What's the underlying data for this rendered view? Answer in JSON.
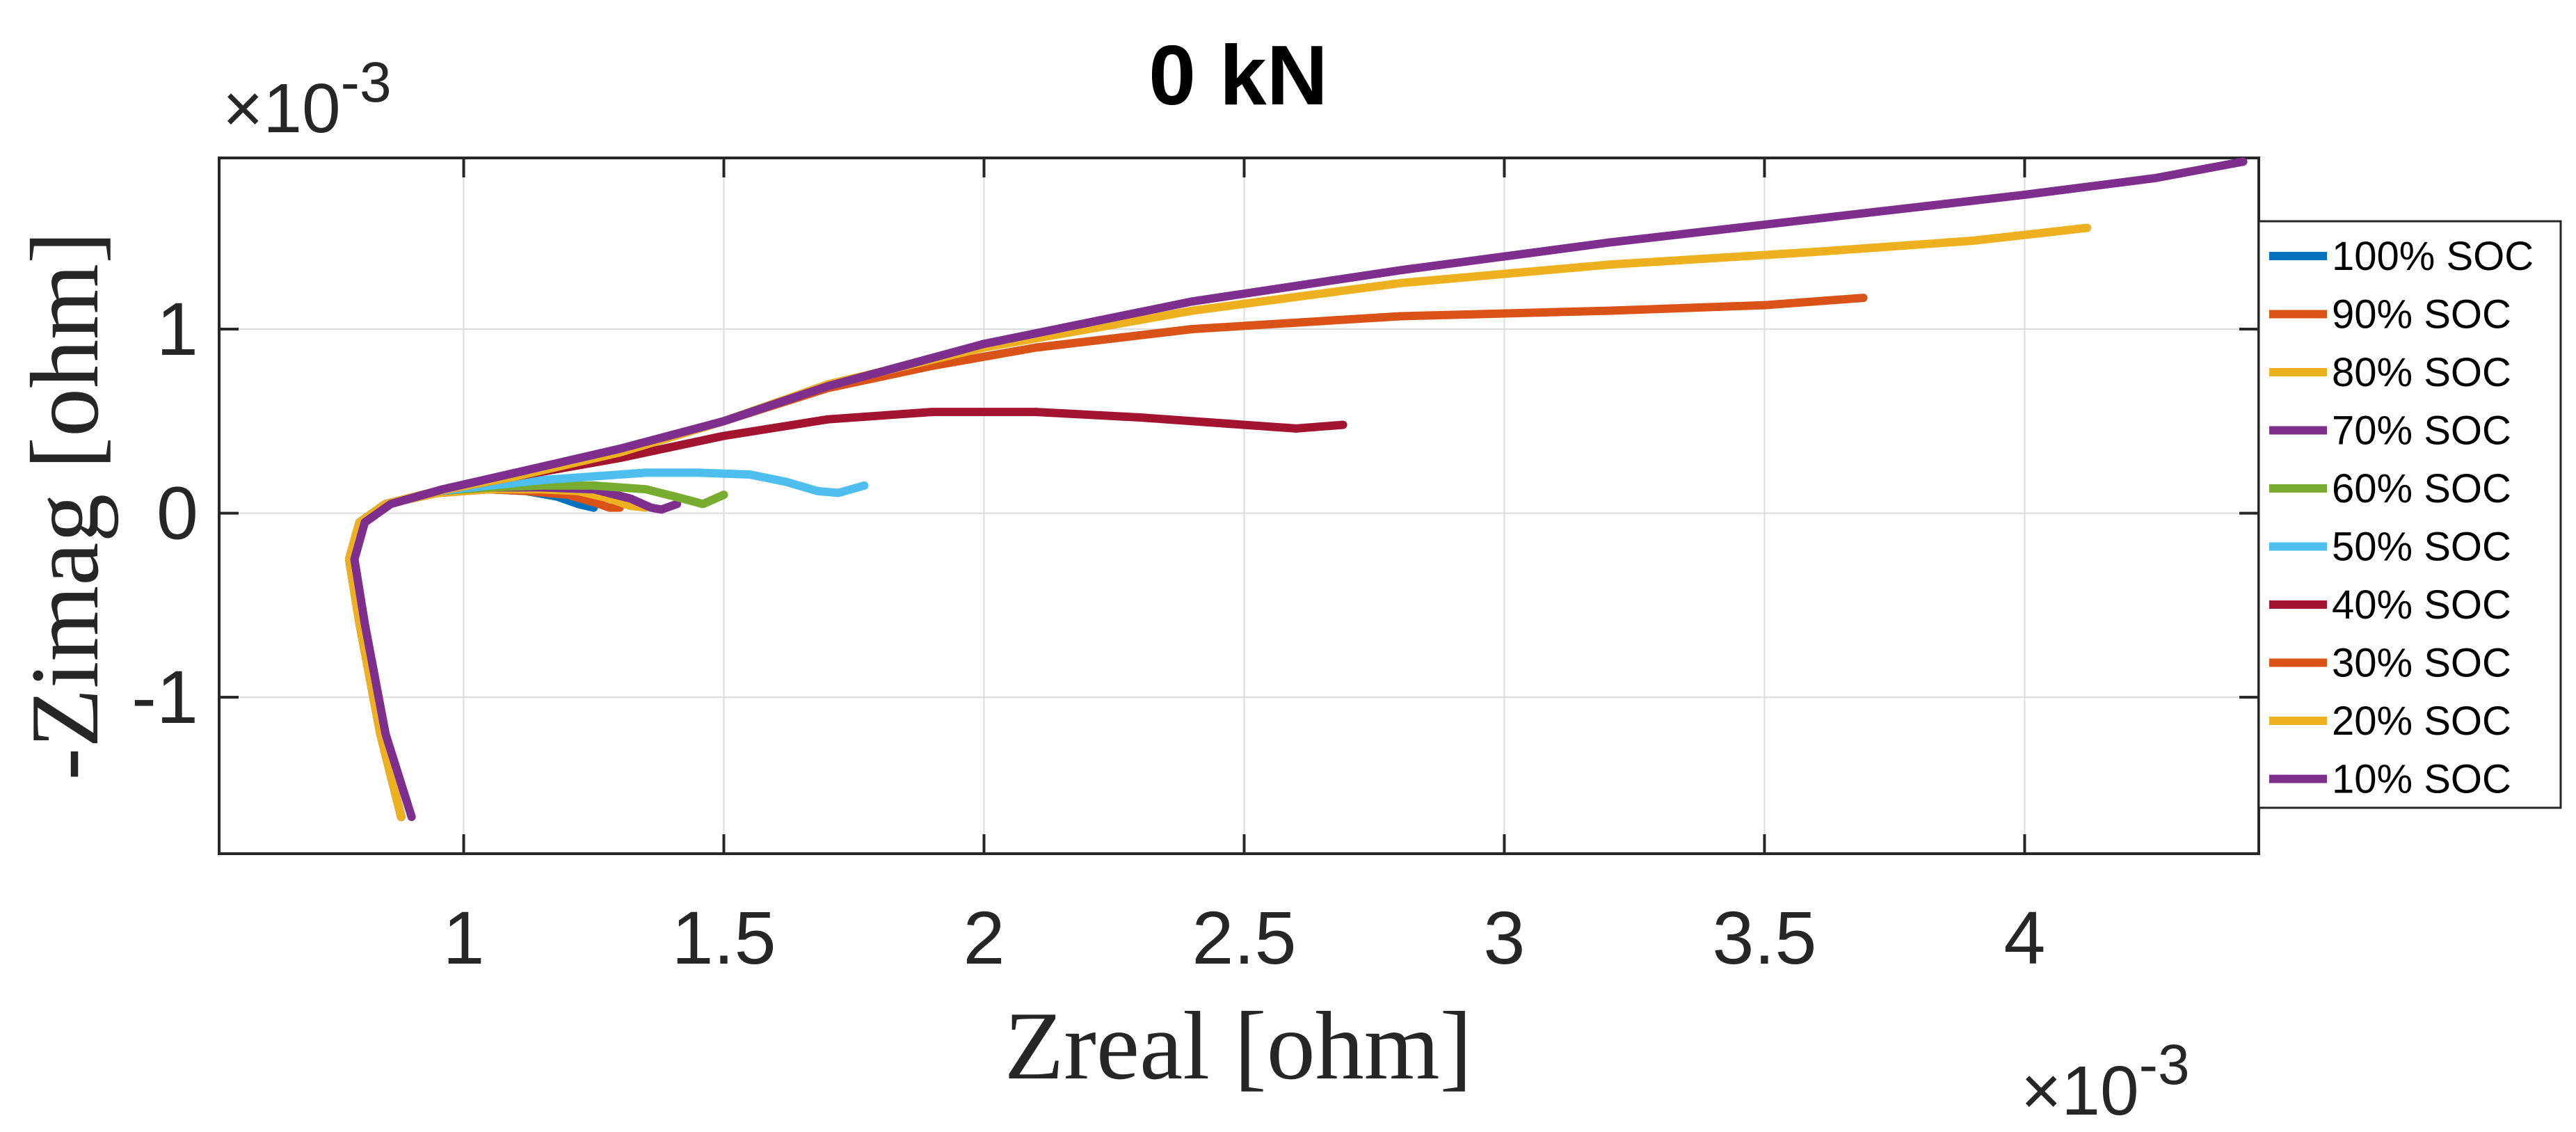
{
  "chart_data": {
    "type": "line",
    "title": "0 kN",
    "xlabel": "Zreal [ohm]",
    "ylabel": "-Zimag [ohm]",
    "x_exponent_label": "×10",
    "x_exponent_power": "-3",
    "y_exponent_label": "×10",
    "y_exponent_power": "-3",
    "xlim": [
      0.53,
      4.45
    ],
    "ylim": [
      -1.85,
      1.93
    ],
    "xticks": [
      1,
      1.5,
      2,
      2.5,
      3,
      3.5,
      4
    ],
    "xtick_labels": [
      "1",
      "1.5",
      "2",
      "2.5",
      "3",
      "3.5",
      "4"
    ],
    "yticks": [
      -1,
      0,
      1
    ],
    "ytick_labels": [
      "-1",
      "0",
      "1"
    ],
    "grid": true,
    "legend_position": "right",
    "units_note": "values in ×10^-3 ohm",
    "series": [
      {
        "name": "100% SOC",
        "color": "#0072BD",
        "points": [
          [
            0.88,
            -1.65
          ],
          [
            0.84,
            -1.2
          ],
          [
            0.8,
            -0.6
          ],
          [
            0.78,
            -0.25
          ],
          [
            0.8,
            -0.05
          ],
          [
            0.85,
            0.05
          ],
          [
            0.95,
            0.11
          ],
          [
            1.05,
            0.13
          ],
          [
            1.12,
            0.12
          ],
          [
            1.18,
            0.09
          ],
          [
            1.22,
            0.05
          ],
          [
            1.25,
            0.03
          ]
        ]
      },
      {
        "name": "90% SOC",
        "color": "#D95319",
        "points": [
          [
            0.88,
            -1.65
          ],
          [
            0.84,
            -1.2
          ],
          [
            0.8,
            -0.6
          ],
          [
            0.78,
            -0.25
          ],
          [
            0.8,
            -0.05
          ],
          [
            0.85,
            0.05
          ],
          [
            0.95,
            0.11
          ],
          [
            1.05,
            0.13
          ],
          [
            1.12,
            0.12
          ],
          [
            1.2,
            0.1
          ],
          [
            1.25,
            0.06
          ],
          [
            1.28,
            0.03
          ],
          [
            1.3,
            0.03
          ]
        ]
      },
      {
        "name": "80% SOC",
        "color": "#EDB120",
        "points": [
          [
            0.88,
            -1.65
          ],
          [
            0.84,
            -1.2
          ],
          [
            0.8,
            -0.6
          ],
          [
            0.78,
            -0.25
          ],
          [
            0.8,
            -0.05
          ],
          [
            0.85,
            0.05
          ],
          [
            0.95,
            0.11
          ],
          [
            1.05,
            0.13
          ],
          [
            1.15,
            0.13
          ],
          [
            1.22,
            0.12
          ],
          [
            1.28,
            0.08
          ],
          [
            1.32,
            0.04
          ],
          [
            1.35,
            0.03
          ]
        ]
      },
      {
        "name": "70% SOC",
        "color": "#7E2F8E",
        "points": [
          [
            0.88,
            -1.65
          ],
          [
            0.84,
            -1.2
          ],
          [
            0.8,
            -0.6
          ],
          [
            0.78,
            -0.25
          ],
          [
            0.8,
            -0.05
          ],
          [
            0.85,
            0.05
          ],
          [
            0.95,
            0.12
          ],
          [
            1.05,
            0.14
          ],
          [
            1.15,
            0.14
          ],
          [
            1.25,
            0.13
          ],
          [
            1.32,
            0.08
          ],
          [
            1.36,
            0.03
          ],
          [
            1.38,
            0.02
          ],
          [
            1.41,
            0.05
          ]
        ]
      },
      {
        "name": "60% SOC",
        "color": "#77AC30",
        "points": [
          [
            0.88,
            -1.65
          ],
          [
            0.84,
            -1.2
          ],
          [
            0.8,
            -0.6
          ],
          [
            0.78,
            -0.25
          ],
          [
            0.8,
            -0.05
          ],
          [
            0.85,
            0.05
          ],
          [
            0.95,
            0.12
          ],
          [
            1.05,
            0.14
          ],
          [
            1.15,
            0.15
          ],
          [
            1.25,
            0.15
          ],
          [
            1.35,
            0.13
          ],
          [
            1.42,
            0.08
          ],
          [
            1.46,
            0.05
          ],
          [
            1.5,
            0.1
          ]
        ]
      },
      {
        "name": "50% SOC",
        "color": "#4DBEEE",
        "points": [
          [
            0.88,
            -1.65
          ],
          [
            0.84,
            -1.2
          ],
          [
            0.8,
            -0.6
          ],
          [
            0.78,
            -0.25
          ],
          [
            0.8,
            -0.05
          ],
          [
            0.85,
            0.05
          ],
          [
            0.95,
            0.12
          ],
          [
            1.05,
            0.15
          ],
          [
            1.15,
            0.18
          ],
          [
            1.25,
            0.2
          ],
          [
            1.35,
            0.22
          ],
          [
            1.45,
            0.22
          ],
          [
            1.55,
            0.21
          ],
          [
            1.62,
            0.17
          ],
          [
            1.68,
            0.12
          ],
          [
            1.72,
            0.11
          ],
          [
            1.77,
            0.15
          ]
        ]
      },
      {
        "name": "40% SOC",
        "color": "#A2142F",
        "points": [
          [
            0.88,
            -1.65
          ],
          [
            0.84,
            -1.2
          ],
          [
            0.8,
            -0.6
          ],
          [
            0.78,
            -0.25
          ],
          [
            0.8,
            -0.05
          ],
          [
            0.85,
            0.05
          ],
          [
            0.95,
            0.12
          ],
          [
            1.1,
            0.2
          ],
          [
            1.3,
            0.3
          ],
          [
            1.5,
            0.42
          ],
          [
            1.7,
            0.51
          ],
          [
            1.9,
            0.55
          ],
          [
            2.1,
            0.55
          ],
          [
            2.3,
            0.52
          ],
          [
            2.5,
            0.48
          ],
          [
            2.6,
            0.46
          ],
          [
            2.69,
            0.48
          ]
        ]
      },
      {
        "name": "30% SOC",
        "color": "#D95319",
        "points": [
          [
            0.88,
            -1.65
          ],
          [
            0.84,
            -1.2
          ],
          [
            0.8,
            -0.6
          ],
          [
            0.78,
            -0.25
          ],
          [
            0.8,
            -0.05
          ],
          [
            0.85,
            0.05
          ],
          [
            0.95,
            0.12
          ],
          [
            1.1,
            0.2
          ],
          [
            1.3,
            0.33
          ],
          [
            1.5,
            0.5
          ],
          [
            1.7,
            0.68
          ],
          [
            1.9,
            0.8
          ],
          [
            2.1,
            0.9
          ],
          [
            2.4,
            1.0
          ],
          [
            2.8,
            1.07
          ],
          [
            3.2,
            1.1
          ],
          [
            3.5,
            1.13
          ],
          [
            3.69,
            1.17
          ]
        ]
      },
      {
        "name": "20% SOC",
        "color": "#EDB120",
        "points": [
          [
            0.88,
            -1.65
          ],
          [
            0.84,
            -1.2
          ],
          [
            0.8,
            -0.6
          ],
          [
            0.78,
            -0.25
          ],
          [
            0.8,
            -0.05
          ],
          [
            0.85,
            0.05
          ],
          [
            0.95,
            0.12
          ],
          [
            1.1,
            0.2
          ],
          [
            1.3,
            0.33
          ],
          [
            1.5,
            0.5
          ],
          [
            1.7,
            0.7
          ],
          [
            2.0,
            0.9
          ],
          [
            2.4,
            1.1
          ],
          [
            2.8,
            1.25
          ],
          [
            3.2,
            1.35
          ],
          [
            3.6,
            1.42
          ],
          [
            3.9,
            1.48
          ],
          [
            4.12,
            1.55
          ]
        ]
      },
      {
        "name": "10% SOC",
        "color": "#7E2F8E",
        "points": [
          [
            0.9,
            -1.65
          ],
          [
            0.85,
            -1.2
          ],
          [
            0.81,
            -0.6
          ],
          [
            0.79,
            -0.25
          ],
          [
            0.81,
            -0.05
          ],
          [
            0.86,
            0.05
          ],
          [
            0.96,
            0.13
          ],
          [
            1.1,
            0.22
          ],
          [
            1.3,
            0.35
          ],
          [
            1.5,
            0.5
          ],
          [
            1.7,
            0.69
          ],
          [
            2.0,
            0.92
          ],
          [
            2.4,
            1.15
          ],
          [
            2.8,
            1.32
          ],
          [
            3.2,
            1.47
          ],
          [
            3.6,
            1.6
          ],
          [
            4.0,
            1.73
          ],
          [
            4.25,
            1.82
          ],
          [
            4.42,
            1.91
          ]
        ]
      }
    ]
  }
}
